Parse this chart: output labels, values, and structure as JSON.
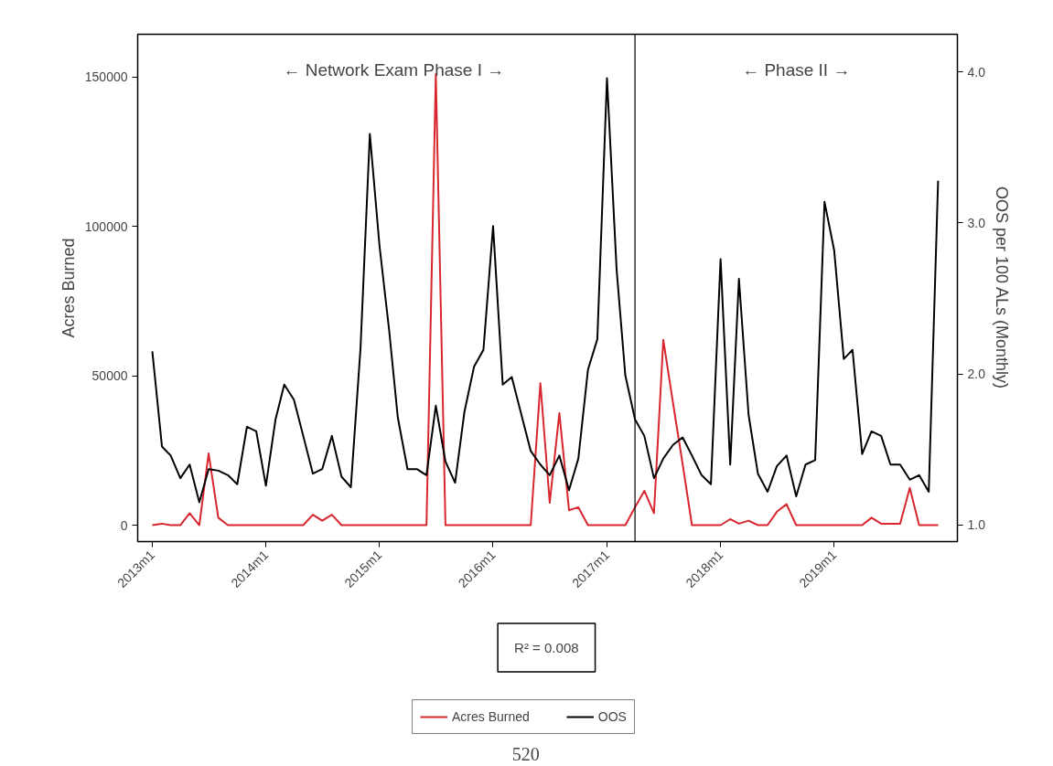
{
  "chart_data": {
    "type": "line",
    "xlabel": null,
    "ylabel": "Acres Burned",
    "y2label": "OOS per 100 ALs (Monthly)",
    "x": [
      "2013-01",
      "2013-02",
      "2013-03",
      "2013-04",
      "2013-05",
      "2013-06",
      "2013-07",
      "2013-08",
      "2013-09",
      "2013-10",
      "2013-11",
      "2013-12",
      "2014-01",
      "2014-02",
      "2014-03",
      "2014-04",
      "2014-05",
      "2014-06",
      "2014-07",
      "2014-08",
      "2014-09",
      "2014-10",
      "2014-11",
      "2014-12",
      "2015-01",
      "2015-02",
      "2015-03",
      "2015-04",
      "2015-05",
      "2015-06",
      "2015-07",
      "2015-08",
      "2015-09",
      "2015-10",
      "2015-11",
      "2015-12",
      "2016-01",
      "2016-02",
      "2016-03",
      "2016-04",
      "2016-05",
      "2016-06",
      "2016-07",
      "2016-08",
      "2016-09",
      "2016-10",
      "2016-11",
      "2016-12",
      "2017-01",
      "2017-02",
      "2017-03",
      "2017-04",
      "2017-05",
      "2017-06",
      "2017-07",
      "2017-08",
      "2017-09",
      "2017-10",
      "2017-11",
      "2017-12",
      "2018-01",
      "2018-02",
      "2018-03",
      "2018-04",
      "2018-05",
      "2018-06",
      "2018-07",
      "2018-08",
      "2018-09",
      "2018-10",
      "2018-11",
      "2018-12",
      "2019-01",
      "2019-02",
      "2019-03",
      "2019-04",
      "2019-05",
      "2019-06",
      "2019-07",
      "2019-08",
      "2019-09",
      "2019-10",
      "2019-11",
      "2019-12"
    ],
    "series": [
      {
        "name": "Acres Burned",
        "color": "#d7262e",
        "values": [
          0,
          500,
          0,
          0,
          4000,
          0,
          24000,
          2500,
          0,
          0,
          0,
          0,
          0,
          0,
          0,
          0,
          0,
          3500,
          1500,
          3500,
          0,
          0,
          0,
          0,
          0,
          0,
          0,
          0,
          0,
          0,
          151000,
          0,
          0,
          0,
          0,
          0,
          0,
          0,
          0,
          0,
          0,
          47500,
          7500,
          37500,
          5000,
          6000,
          0,
          0,
          0,
          0,
          0,
          6000,
          11500,
          4000,
          62000,
          41000,
          20500,
          0,
          0,
          0,
          0,
          2000,
          500,
          1500,
          0,
          0,
          4500,
          7000,
          0,
          0,
          0,
          0,
          0,
          0,
          0,
          0,
          2500,
          500,
          500,
          500,
          12500,
          0,
          0,
          0
        ]
      },
      {
        "name": "OOS",
        "color": "#000000",
        "axis": "y2",
        "values": [
          2.15,
          1.52,
          1.46,
          1.31,
          1.4,
          1.15,
          1.37,
          1.36,
          1.33,
          1.27,
          1.65,
          1.62,
          1.26,
          1.7,
          1.93,
          1.83,
          1.59,
          1.34,
          1.37,
          1.59,
          1.32,
          1.25,
          2.17,
          3.59,
          2.85,
          2.29,
          1.71,
          1.37,
          1.37,
          1.33,
          1.79,
          1.42,
          1.28,
          1.75,
          2.05,
          2.16,
          2.98,
          1.93,
          1.98,
          1.73,
          1.49,
          1.4,
          1.33,
          1.46,
          1.23,
          1.44,
          2.03,
          2.23,
          3.96,
          2.69,
          1.99,
          1.7,
          1.59,
          1.31,
          1.44,
          1.53,
          1.58,
          1.46,
          1.33,
          1.27,
          2.76,
          1.4,
          2.63,
          1.73,
          1.34,
          1.22,
          1.39,
          1.46,
          1.19,
          1.4,
          1.43,
          3.14,
          2.82,
          2.1,
          2.16,
          1.47,
          1.62,
          1.59,
          1.4,
          1.4,
          1.3,
          1.33,
          1.22,
          3.28
        ]
      }
    ],
    "xlim": [
      "2012-11-15",
      "2020-02-01"
    ],
    "xticks": [
      {
        "value": "2013-01",
        "label": "2013m1"
      },
      {
        "value": "2014-01",
        "label": "2014m1"
      },
      {
        "value": "2015-01",
        "label": "2015m1"
      },
      {
        "value": "2016-01",
        "label": "2016m1"
      },
      {
        "value": "2017-01",
        "label": "2017m1"
      },
      {
        "value": "2018-01",
        "label": "2018m1"
      },
      {
        "value": "2019-01",
        "label": "2019m1"
      }
    ],
    "ylim": [
      -5500,
      164300
    ],
    "yticks": [
      0,
      50000,
      100000,
      150000
    ],
    "y2lim": [
      0.89,
      4.25
    ],
    "y2ticks": [
      {
        "value": 1,
        "label": "1.0"
      },
      {
        "value": 2,
        "label": "2.0"
      },
      {
        "value": 3,
        "label": "3.0"
      },
      {
        "value": 4,
        "label": "4.0"
      }
    ],
    "ref_lines": [
      {
        "axis": "x",
        "value": "2017-04",
        "label": null,
        "color": "#000000"
      }
    ],
    "annotations": [
      "← Network Exam Phase I →",
      "← Phase II →",
      "R² = 0.008",
      "520"
    ],
    "grid": false,
    "legend": "bottom",
    "line_style": "solid",
    "marker": "none"
  }
}
